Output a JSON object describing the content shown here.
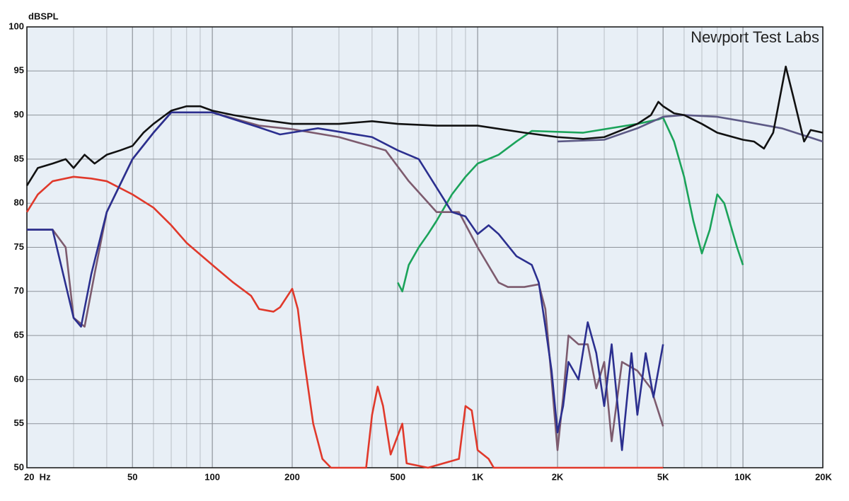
{
  "chart_data": {
    "type": "line",
    "ylabel": "dBSPL",
    "annotation": "Newport Test Labs",
    "xscale": "log",
    "grid": true,
    "xlim": [
      20,
      20000
    ],
    "ylim": [
      50,
      100
    ],
    "yticks": [
      50,
      55,
      60,
      65,
      70,
      75,
      80,
      85,
      90,
      95,
      100
    ],
    "xticks": [
      {
        "value": 20,
        "label": "20  Hz"
      },
      50,
      100,
      200,
      500,
      {
        "value": 1000,
        "label": "1K"
      },
      {
        "value": 2000,
        "label": "2K"
      },
      {
        "value": 5000,
        "label": "5K"
      },
      {
        "value": 10000,
        "label": "10K"
      },
      {
        "value": 20000,
        "label": "20K"
      }
    ],
    "xminorticks": [
      30,
      40,
      60,
      70,
      80,
      90,
      300,
      400,
      600,
      700,
      800,
      900,
      3000,
      4000,
      6000,
      7000,
      8000,
      9000
    ],
    "series": [
      {
        "color": "#e0392b",
        "x": [
          20,
          22,
          25,
          30,
          35,
          40,
          50,
          60,
          70,
          80,
          100,
          120,
          140,
          150,
          170,
          180,
          200,
          210,
          220,
          240,
          260,
          280,
          380,
          400,
          420,
          440,
          470,
          520,
          540,
          650,
          850,
          900,
          950,
          1000,
          1100,
          1150,
          5000
        ],
        "values": [
          79,
          81,
          82.5,
          83,
          82.8,
          82.5,
          81,
          79.5,
          77.5,
          75.5,
          73,
          71,
          69.5,
          68,
          67.7,
          68.2,
          70.3,
          68,
          63,
          55,
          51,
          50,
          50,
          56,
          59.2,
          57,
          51.5,
          55,
          50.5,
          50,
          51,
          57,
          56.5,
          52,
          51,
          50,
          50
        ]
      },
      {
        "color": "#1ba35a",
        "x": [
          500,
          520,
          550,
          600,
          650,
          700,
          800,
          900,
          1000,
          1200,
          1400,
          1600,
          2500,
          4000,
          4800,
          5000,
          5500,
          6000,
          6500,
          7000,
          7500,
          8000,
          8500,
          9500,
          10000
        ],
        "values": [
          71,
          70,
          73,
          75,
          76.5,
          78,
          81,
          83,
          84.5,
          85.5,
          87,
          88.2,
          88,
          89,
          89.5,
          89.7,
          87,
          83,
          78,
          74.3,
          77,
          81,
          80,
          75,
          73
        ]
      },
      {
        "color": "#7d5b6e",
        "x": [
          20,
          25,
          28,
          30,
          33,
          36,
          40,
          50,
          60,
          70,
          100,
          150,
          200,
          300,
          450,
          550,
          700,
          850,
          1000,
          1200,
          1300,
          1500,
          1700,
          1800,
          1900,
          2000,
          2100,
          2200,
          2400,
          2600,
          2800,
          3000,
          3200,
          3500,
          4000,
          4500,
          5000
        ],
        "values": [
          77,
          77,
          75,
          67,
          66,
          72,
          79,
          85,
          88,
          90.3,
          90.3,
          88.8,
          88.4,
          87.5,
          86,
          82.5,
          79,
          79,
          75,
          71,
          70.5,
          70.5,
          70.8,
          68,
          60,
          52,
          58,
          65,
          64,
          64,
          59,
          62,
          53,
          62,
          61,
          59,
          54.7
        ]
      },
      {
        "color": "#2b2f8f",
        "x": [
          20,
          25,
          30,
          32,
          35,
          40,
          50,
          60,
          70,
          100,
          150,
          180,
          250,
          400,
          500,
          600,
          800,
          900,
          1000,
          1100,
          1200,
          1400,
          1600,
          1700,
          1800,
          1900,
          2000,
          2100,
          2200,
          2400,
          2600,
          2800,
          3000,
          3200,
          3500,
          3800,
          4000,
          4300,
          4600,
          5000
        ],
        "values": [
          77,
          77,
          67,
          66,
          72,
          79,
          85,
          88,
          90.3,
          90.3,
          88.6,
          87.8,
          88.5,
          87.5,
          86,
          85,
          79,
          78.5,
          76.5,
          77.5,
          76.5,
          74,
          73,
          71,
          66,
          61,
          54,
          57,
          62,
          60,
          66.5,
          63,
          57,
          64,
          52,
          63,
          56,
          63,
          58,
          64
        ]
      },
      {
        "color": "#5d5a86",
        "x": [
          2000,
          3000,
          4000,
          5000,
          6000,
          8000,
          10000,
          14000,
          20000
        ],
        "values": [
          87,
          87.2,
          88.5,
          89.8,
          90,
          89.8,
          89.3,
          88.5,
          87
        ]
      },
      {
        "color": "#111111",
        "x": [
          20,
          22,
          25,
          28,
          30,
          33,
          36,
          40,
          45,
          50,
          55,
          60,
          70,
          80,
          90,
          100,
          120,
          150,
          200,
          300,
          400,
          500,
          700,
          1000,
          1500,
          2000,
          2500,
          3000,
          4000,
          4500,
          4800,
          5000,
          5500,
          6000,
          7000,
          8000,
          10000,
          11000,
          12000,
          13000,
          14500,
          15500,
          17000,
          18000,
          20000
        ],
        "values": [
          82,
          84,
          84.5,
          85,
          84,
          85.5,
          84.5,
          85.5,
          86,
          86.5,
          88,
          89,
          90.5,
          91,
          91,
          90.5,
          90,
          89.5,
          89,
          89,
          89.3,
          89,
          88.8,
          88.8,
          88,
          87.5,
          87.3,
          87.5,
          89,
          90,
          91.5,
          91,
          90.2,
          90,
          89,
          88,
          87.2,
          87,
          86.2,
          88,
          95.5,
          92,
          87,
          88.3,
          88
        ]
      }
    ]
  }
}
